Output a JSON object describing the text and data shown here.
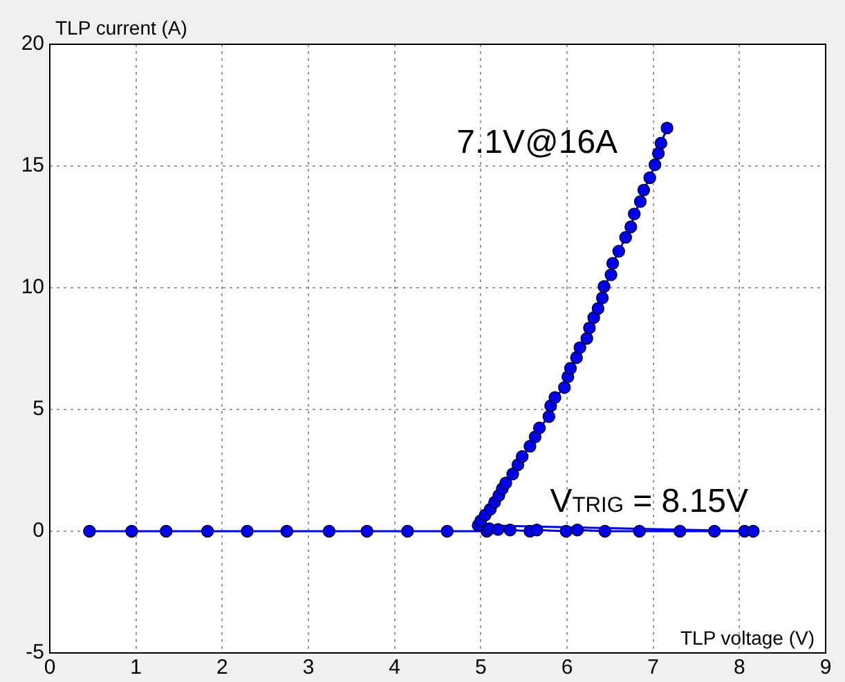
{
  "chart_data": {
    "type": "line",
    "xlabel": "TLP voltage (V)",
    "ylabel": "TLP current (A)",
    "xlim": [
      0,
      9
    ],
    "xticks": [
      0,
      1,
      2,
      3,
      4,
      5,
      6,
      7,
      8,
      9
    ],
    "ylim": [
      -5,
      20
    ],
    "yticks": [
      -5,
      0,
      5,
      10,
      15,
      20
    ],
    "grid": true,
    "legend": false,
    "marker": "circle",
    "line_style": "solid",
    "annotations": [
      {
        "text": "7.1V@16A",
        "x": 7.1,
        "y": 16
      },
      {
        "text": "V$_{TRIG}$ = 8.15V",
        "x": 8.15,
        "y": 0
      }
    ],
    "series": [
      {
        "color": "#0000ee",
        "x": [
          0.46,
          0.95,
          1.35,
          1.83,
          2.29,
          2.75,
          3.24,
          3.68,
          4.15,
          4.61,
          5.07,
          5.1,
          5.2,
          5.34,
          5.57,
          5.65,
          5.99,
          6.12,
          6.44,
          6.84,
          7.31,
          7.71,
          8.06,
          8.16,
          4.97,
          5.0,
          5.05,
          5.11,
          5.16,
          5.21,
          5.25,
          5.29,
          5.37,
          5.43,
          5.48,
          5.57,
          5.63,
          5.68,
          5.79,
          5.81,
          5.86,
          5.97,
          6.01,
          6.04,
          6.11,
          6.15,
          6.23,
          6.26,
          6.31,
          6.36,
          6.41,
          6.43,
          6.51,
          6.53,
          6.6,
          6.68,
          6.74,
          6.78,
          6.85,
          6.89,
          6.96,
          7.02,
          7.06,
          7.09,
          7.16
        ],
        "values": [
          0,
          0,
          0,
          0,
          0,
          0,
          0,
          0,
          0,
          0,
          0,
          0.1,
          0.07,
          0.05,
          0,
          0.05,
          0,
          0.05,
          0,
          0,
          0,
          0,
          0,
          0,
          0.24,
          0.43,
          0.66,
          0.9,
          1.19,
          1.47,
          1.75,
          1.98,
          2.35,
          2.73,
          3.07,
          3.49,
          3.87,
          4.24,
          4.71,
          5.15,
          5.49,
          5.9,
          6.34,
          6.69,
          7.13,
          7.54,
          7.92,
          8.35,
          8.77,
          9.15,
          9.58,
          10.05,
          10.53,
          11.0,
          11.5,
          12.07,
          12.5,
          13.03,
          13.54,
          14.01,
          14.52,
          15.05,
          15.52,
          15.94,
          16.56
        ]
      }
    ]
  }
}
